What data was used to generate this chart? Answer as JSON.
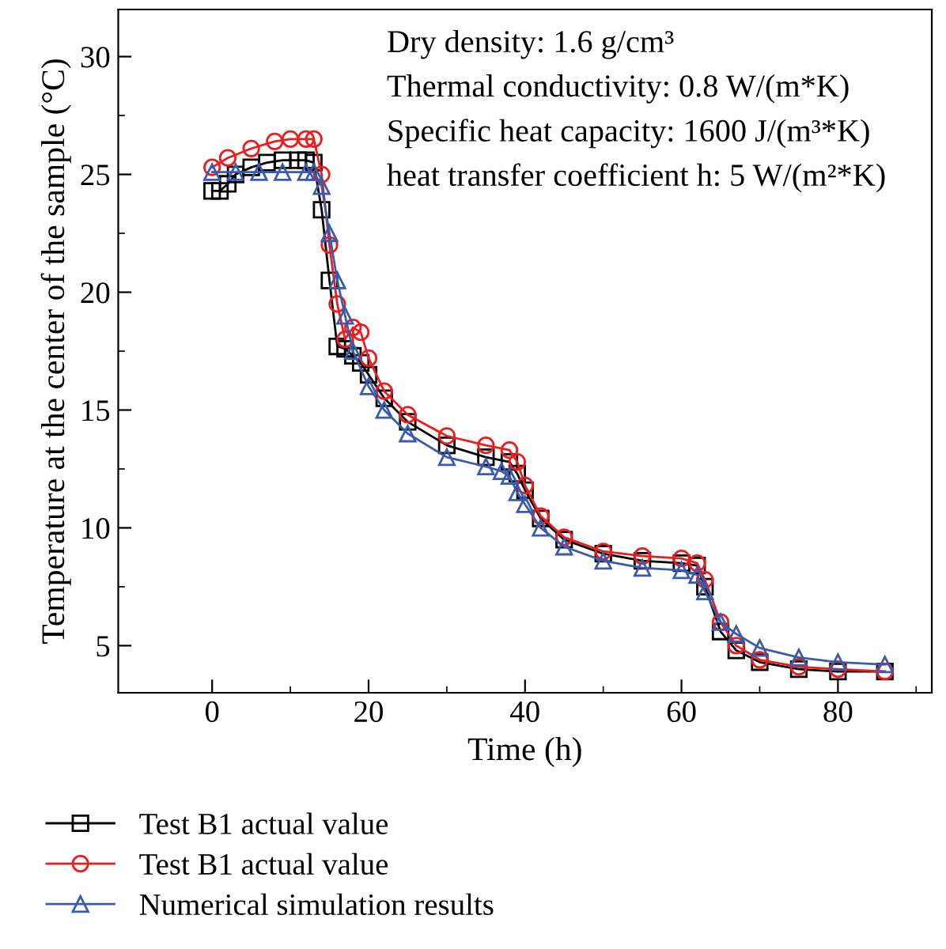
{
  "chart_data": {
    "type": "line",
    "xlabel": "Time (h)",
    "ylabel": "Temperature at the center of the sample (°C)",
    "xlim": [
      -12,
      92
    ],
    "ylim": [
      3,
      32
    ],
    "xticks": [
      0,
      {
        "value": 10,
        "label": null
      },
      20,
      {
        "value": 30,
        "label": null
      },
      40,
      {
        "value": 50,
        "label": null
      },
      60,
      {
        "value": 70,
        "label": null
      },
      80,
      {
        "value": 90,
        "label": null
      }
    ],
    "yticks": [
      5,
      {
        "value": 7.5,
        "label": null
      },
      10,
      {
        "value": 12.5,
        "label": null
      },
      15,
      {
        "value": 17.5,
        "label": null
      },
      20,
      {
        "value": 22.5,
        "label": null
      },
      25,
      {
        "value": 27.5,
        "label": null
      },
      30
    ],
    "grid": false,
    "legend": "bottom",
    "line_style": "solid",
    "annotations": [
      "Dry density: 1.6 g/cm³",
      "Thermal conductivity: 0.8 W/(m*K)",
      "Specific heat capacity: 1600 J/(m³*K)",
      "heat transfer coefficient h: 5 W/(m²*K)"
    ],
    "series": [
      {
        "name": "Test B1 actual value",
        "color": "#000000",
        "marker": "square",
        "x": [
          0,
          1,
          2,
          3,
          5,
          7,
          9,
          11,
          12,
          13,
          14,
          15,
          16,
          17,
          18,
          19,
          20,
          22,
          25,
          30,
          35,
          38,
          39,
          40,
          42,
          45,
          50,
          55,
          60,
          62,
          63,
          65,
          67,
          70,
          75,
          80,
          86
        ],
        "values": [
          24.3,
          24.3,
          24.6,
          25.0,
          25.3,
          25.5,
          25.6,
          25.6,
          25.6,
          25.5,
          23.5,
          20.5,
          17.7,
          17.6,
          17.3,
          17.0,
          16.5,
          15.5,
          14.5,
          13.5,
          13.0,
          12.8,
          12.3,
          11.6,
          10.4,
          9.5,
          8.9,
          8.6,
          8.5,
          8.4,
          7.5,
          5.6,
          4.8,
          4.3,
          4.0,
          3.9,
          3.9
        ]
      },
      {
        "name": "Test B1 actual value",
        "color": "#ee1c1c",
        "marker": "circle",
        "x": [
          0,
          2,
          5,
          8,
          10,
          12,
          13,
          14,
          15,
          16,
          17,
          18,
          19,
          20,
          22,
          25,
          30,
          35,
          38,
          39,
          40,
          42,
          45,
          50,
          55,
          60,
          62,
          63,
          65,
          67,
          70,
          75,
          80,
          86
        ],
        "values": [
          25.3,
          25.7,
          26.1,
          26.4,
          26.5,
          26.5,
          26.5,
          25.0,
          22.0,
          19.5,
          18.0,
          18.5,
          18.3,
          17.2,
          15.8,
          14.8,
          13.9,
          13.5,
          13.3,
          12.8,
          11.8,
          10.5,
          9.6,
          9.0,
          8.8,
          8.7,
          8.5,
          7.8,
          6.0,
          5.0,
          4.4,
          4.1,
          4.0,
          3.9
        ]
      },
      {
        "name": "Numerical simulation results",
        "color": "#3a5bab",
        "marker": "triangle",
        "x": [
          0,
          3,
          6,
          9,
          12,
          13,
          14,
          15,
          16,
          17,
          18,
          20,
          22,
          25,
          30,
          35,
          37,
          38,
          39,
          40,
          42,
          45,
          50,
          55,
          60,
          62,
          63,
          65,
          67,
          70,
          75,
          80,
          86
        ],
        "values": [
          25.1,
          25.1,
          25.1,
          25.1,
          25.1,
          25.1,
          24.5,
          22.5,
          20.5,
          19.0,
          17.5,
          16.0,
          15.0,
          14.0,
          13.0,
          12.6,
          12.4,
          12.2,
          11.5,
          11.0,
          10.0,
          9.2,
          8.6,
          8.3,
          8.2,
          8.0,
          7.3,
          6.0,
          5.5,
          4.9,
          4.5,
          4.3,
          4.2
        ]
      }
    ]
  }
}
